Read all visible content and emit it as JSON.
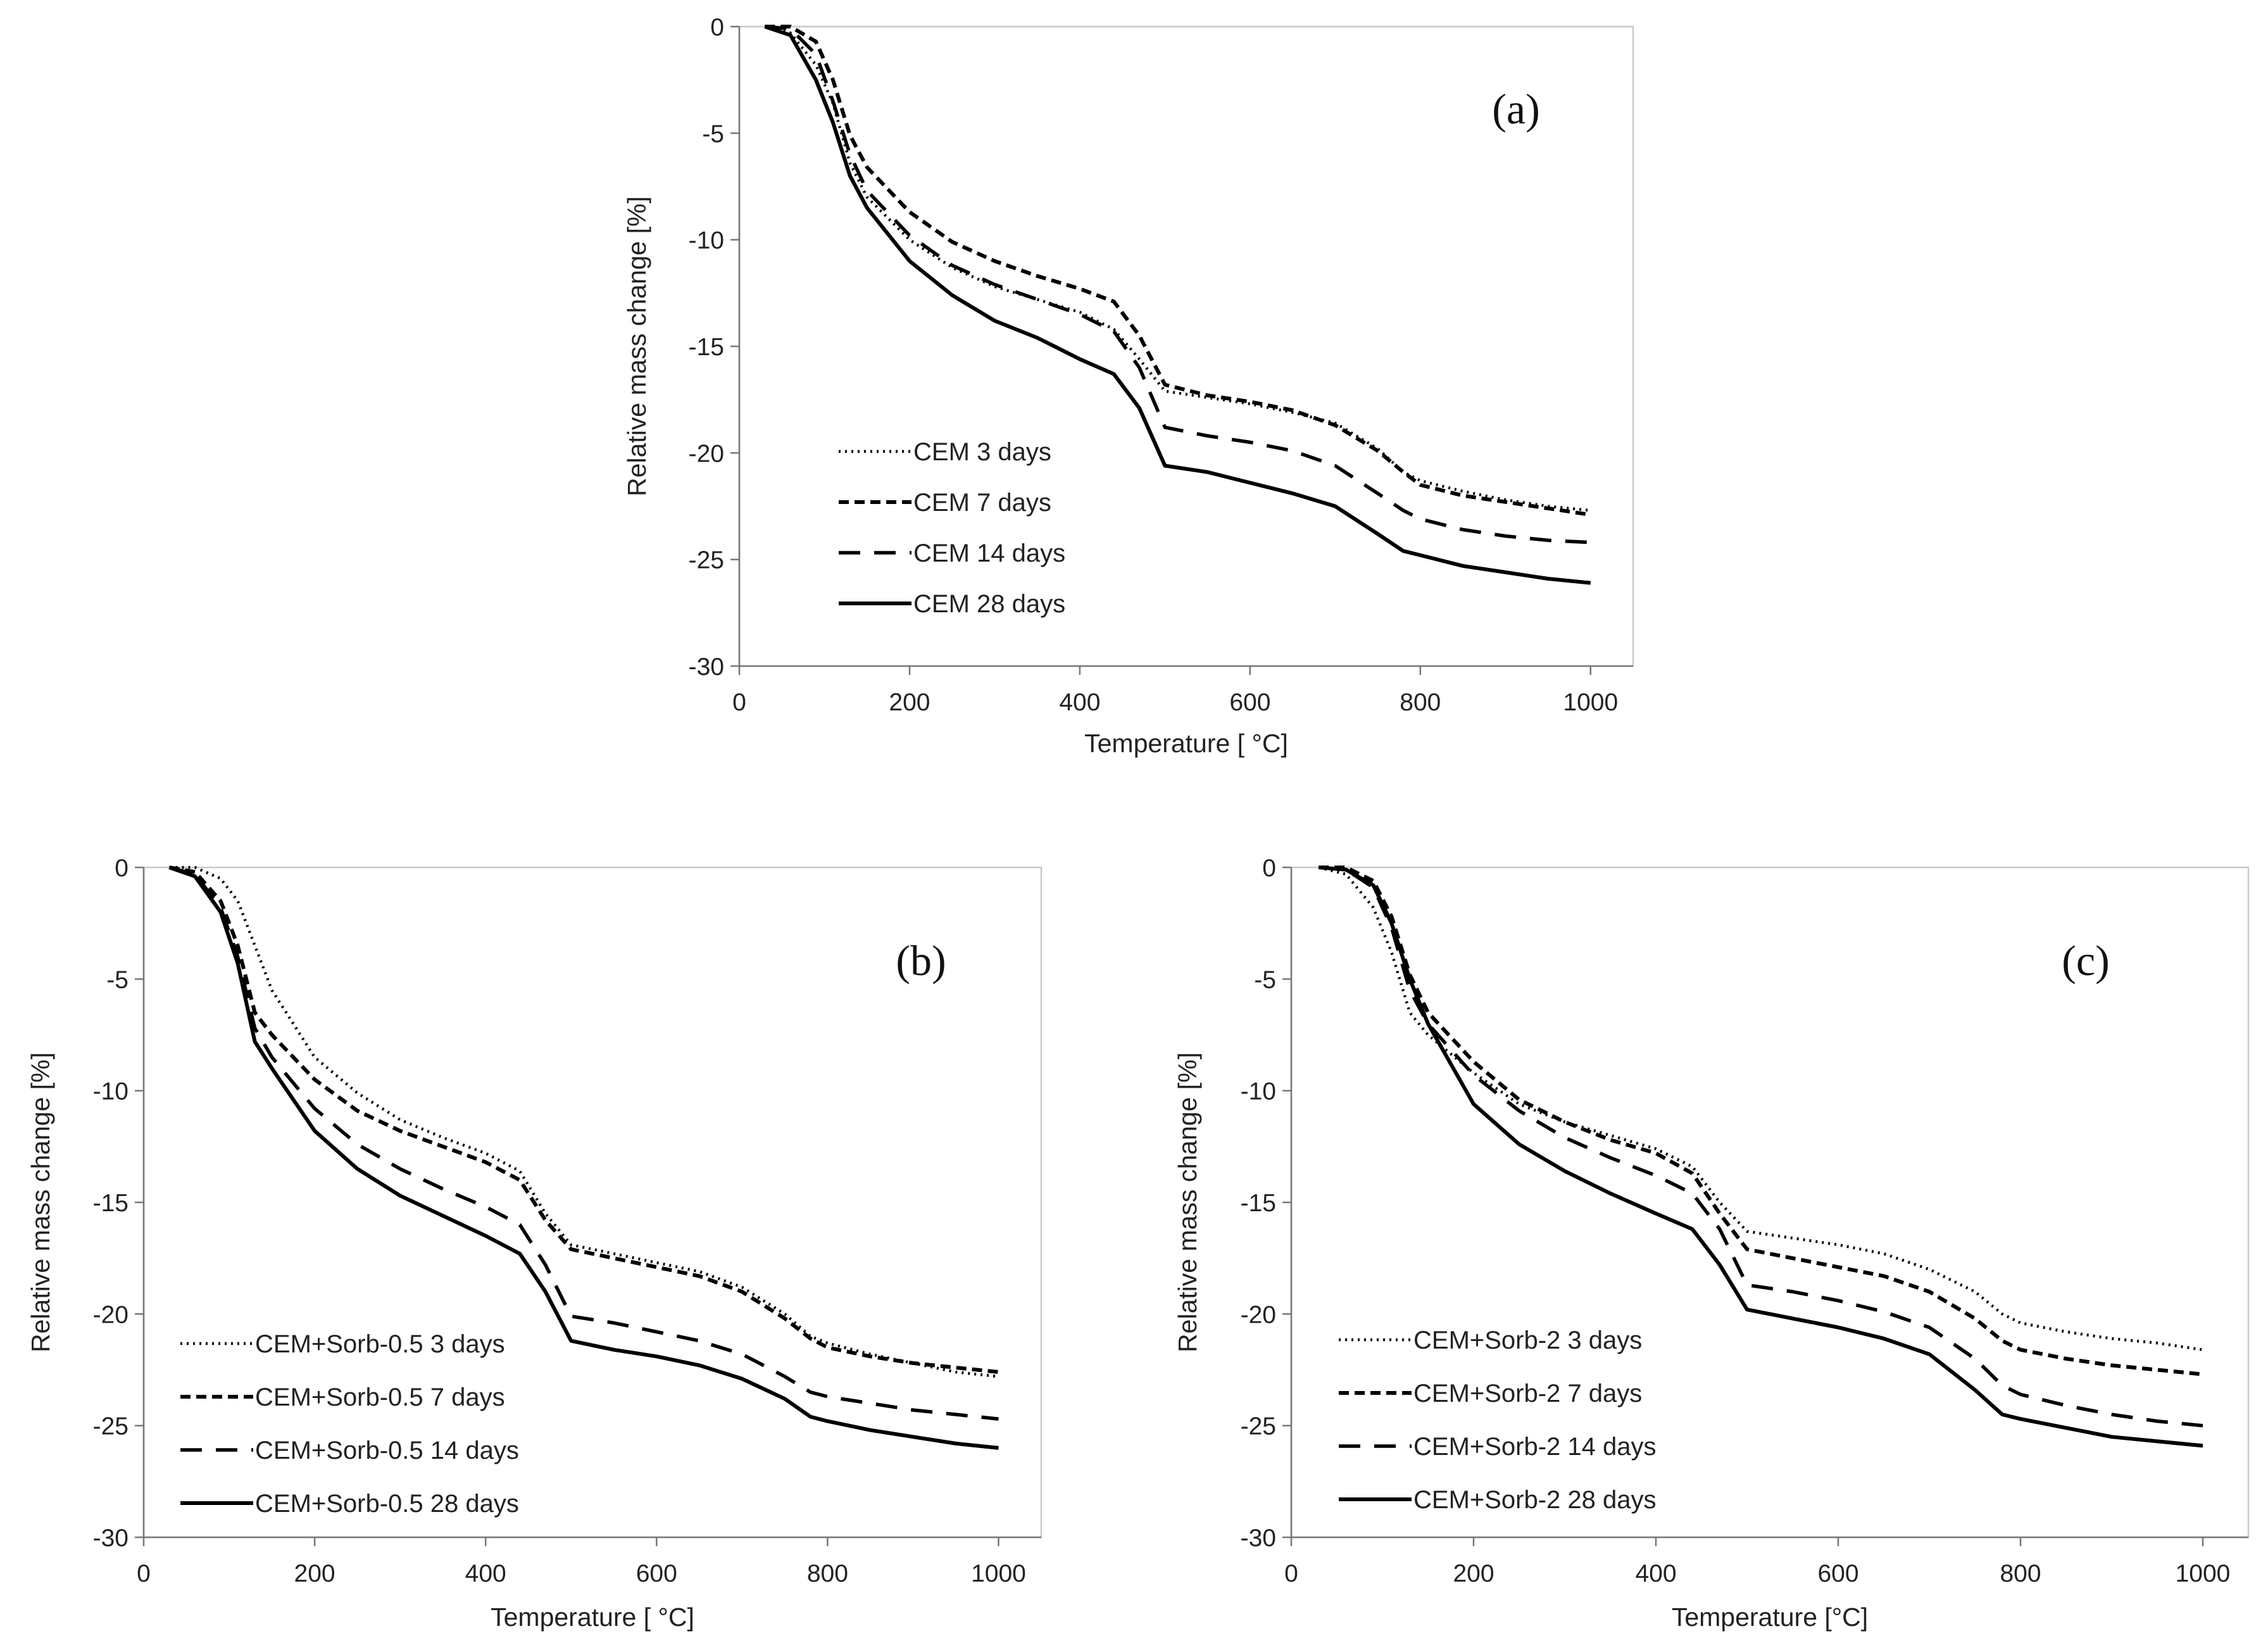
{
  "chart_data": [
    {
      "type": "line",
      "panel_label": "(a)",
      "xlabel": "Temperature [ °C]",
      "ylabel": "Relative mass change [%]",
      "xlim": [
        0,
        1050
      ],
      "ylim": [
        -30,
        0
      ],
      "x_ticks": [
        "0",
        "200",
        "400",
        "600",
        "800",
        "1000"
      ],
      "y_ticks": [
        "0",
        "-5",
        "-10",
        "-15",
        "-20",
        "-25",
        "-30"
      ],
      "grid": false,
      "legend_position": "bottom-left",
      "x": [
        30,
        60,
        90,
        110,
        130,
        150,
        200,
        250,
        300,
        350,
        400,
        440,
        470,
        500,
        550,
        600,
        650,
        700,
        750,
        780,
        800,
        850,
        900,
        950,
        1000
      ],
      "series": [
        {
          "name": "CEM 3 days",
          "style": "dotted",
          "values": [
            0,
            -0.3,
            -1.8,
            -3.6,
            -6.4,
            -8.0,
            -10.0,
            -11.3,
            -12.2,
            -12.8,
            -13.4,
            -14.2,
            -15.6,
            -17.1,
            -17.4,
            -17.7,
            -18.1,
            -18.6,
            -19.8,
            -20.9,
            -21.3,
            -21.8,
            -22.2,
            -22.5,
            -22.7
          ]
        },
        {
          "name": "CEM 7 days",
          "style": "short-dash",
          "values": [
            0,
            0,
            -0.7,
            -2.5,
            -5.1,
            -6.6,
            -8.7,
            -10.1,
            -11.0,
            -11.7,
            -12.3,
            -12.9,
            -14.5,
            -16.8,
            -17.3,
            -17.6,
            -18.0,
            -18.7,
            -19.9,
            -20.9,
            -21.5,
            -22.0,
            -22.3,
            -22.6,
            -22.9
          ]
        },
        {
          "name": "CEM 14 days",
          "style": "long-dash",
          "values": [
            0,
            -0.1,
            -1.3,
            -3.5,
            -6.0,
            -7.7,
            -9.8,
            -11.2,
            -12.1,
            -12.8,
            -13.5,
            -14.3,
            -16.0,
            -18.8,
            -19.2,
            -19.5,
            -19.9,
            -20.6,
            -21.9,
            -22.7,
            -23.1,
            -23.6,
            -23.9,
            -24.1,
            -24.2
          ]
        },
        {
          "name": "CEM 28 days",
          "style": "solid",
          "values": [
            0,
            -0.4,
            -2.5,
            -4.5,
            -7.0,
            -8.5,
            -11.0,
            -12.6,
            -13.8,
            -14.6,
            -15.6,
            -16.3,
            -17.9,
            -20.6,
            -20.9,
            -21.4,
            -21.9,
            -22.5,
            -23.8,
            -24.6,
            -24.8,
            -25.3,
            -25.6,
            -25.9,
            -26.1
          ]
        }
      ]
    },
    {
      "type": "line",
      "panel_label": "(b)",
      "xlabel": "Temperature [ °C]",
      "ylabel": "Relative mass change [%]",
      "xlim": [
        0,
        1050
      ],
      "ylim": [
        -30,
        0
      ],
      "x_ticks": [
        "0",
        "200",
        "400",
        "600",
        "800",
        "1000"
      ],
      "y_ticks": [
        "0",
        "-5",
        "-10",
        "-15",
        "-20",
        "-25",
        "-30"
      ],
      "grid": false,
      "legend_position": "bottom-left",
      "x": [
        30,
        60,
        90,
        110,
        130,
        150,
        200,
        250,
        300,
        350,
        400,
        440,
        470,
        500,
        550,
        600,
        650,
        700,
        750,
        780,
        800,
        850,
        900,
        950,
        1000
      ],
      "series": [
        {
          "name": "CEM+Sorb-0.5 3 days",
          "style": "dotted",
          "values": [
            0,
            0,
            -0.5,
            -1.5,
            -3.5,
            -5.5,
            -8.5,
            -10.1,
            -11.3,
            -12.1,
            -12.8,
            -13.6,
            -15.5,
            -16.9,
            -17.3,
            -17.7,
            -18.1,
            -18.8,
            -20.0,
            -21.0,
            -21.3,
            -21.8,
            -22.2,
            -22.6,
            -22.8
          ]
        },
        {
          "name": "CEM+Sorb-0.5 7 days",
          "style": "short-dash",
          "values": [
            0,
            -0.2,
            -1.5,
            -3.5,
            -6.5,
            -7.5,
            -9.5,
            -10.9,
            -11.8,
            -12.5,
            -13.2,
            -14.0,
            -15.8,
            -17.1,
            -17.5,
            -17.9,
            -18.3,
            -19.0,
            -20.2,
            -21.1,
            -21.5,
            -21.9,
            -22.2,
            -22.4,
            -22.6
          ]
        },
        {
          "name": "CEM+Sorb-0.5 14 days",
          "style": "long-dash",
          "values": [
            0,
            -0.3,
            -1.8,
            -4.0,
            -7.2,
            -8.5,
            -10.8,
            -12.4,
            -13.5,
            -14.4,
            -15.2,
            -16.0,
            -17.8,
            -20.1,
            -20.4,
            -20.8,
            -21.2,
            -21.8,
            -22.8,
            -23.5,
            -23.7,
            -24.0,
            -24.3,
            -24.5,
            -24.7
          ]
        },
        {
          "name": "CEM+Sorb-0.5 28 days",
          "style": "solid",
          "values": [
            0,
            -0.4,
            -2.0,
            -4.3,
            -7.8,
            -9.0,
            -11.8,
            -13.5,
            -14.7,
            -15.6,
            -16.5,
            -17.3,
            -19.0,
            -21.2,
            -21.6,
            -21.9,
            -22.3,
            -22.9,
            -23.8,
            -24.6,
            -24.8,
            -25.2,
            -25.5,
            -25.8,
            -26.0
          ]
        }
      ]
    },
    {
      "type": "line",
      "panel_label": "(c)",
      "xlabel": "Temperature [°C]",
      "ylabel": "Relative mass change [%]",
      "xlim": [
        0,
        1050
      ],
      "ylim": [
        -30,
        0
      ],
      "x_ticks": [
        "0",
        "200",
        "400",
        "600",
        "800",
        "1000"
      ],
      "y_ticks": [
        "0",
        "-5",
        "-10",
        "-15",
        "-20",
        "-25",
        "-30"
      ],
      "grid": false,
      "legend_position": "bottom-left",
      "x": [
        30,
        60,
        90,
        110,
        130,
        150,
        200,
        250,
        300,
        350,
        400,
        440,
        470,
        500,
        550,
        600,
        650,
        700,
        750,
        780,
        800,
        850,
        900,
        950,
        1000
      ],
      "series": [
        {
          "name": "CEM+Sorb-2 3 days",
          "style": "dotted",
          "values": [
            0,
            -0.3,
            -1.8,
            -3.8,
            -6.5,
            -7.5,
            -9.2,
            -10.6,
            -11.4,
            -12.0,
            -12.6,
            -13.4,
            -15.0,
            -16.3,
            -16.6,
            -16.9,
            -17.3,
            -18.0,
            -19.0,
            -20.0,
            -20.4,
            -20.8,
            -21.1,
            -21.3,
            -21.6
          ]
        },
        {
          "name": "CEM+Sorb-2 7 days",
          "style": "short-dash",
          "values": [
            0,
            0,
            -0.6,
            -2.2,
            -4.8,
            -6.5,
            -8.7,
            -10.4,
            -11.4,
            -12.2,
            -12.8,
            -13.7,
            -15.5,
            -17.1,
            -17.5,
            -17.9,
            -18.3,
            -19.0,
            -20.2,
            -21.2,
            -21.6,
            -22.0,
            -22.3,
            -22.5,
            -22.7
          ]
        },
        {
          "name": "CEM+Sorb-2 14 days",
          "style": "long-dash",
          "values": [
            0,
            -0.1,
            -0.9,
            -2.7,
            -5.5,
            -7.0,
            -9.3,
            -10.9,
            -12.1,
            -13.0,
            -13.8,
            -14.6,
            -16.2,
            -18.7,
            -19.0,
            -19.4,
            -19.9,
            -20.6,
            -22.0,
            -23.2,
            -23.6,
            -24.1,
            -24.5,
            -24.8,
            -25.0
          ]
        },
        {
          "name": "CEM+Sorb-2 28 days",
          "style": "solid",
          "values": [
            0,
            -0.1,
            -0.8,
            -2.5,
            -5.0,
            -7.0,
            -10.6,
            -12.4,
            -13.6,
            -14.6,
            -15.5,
            -16.2,
            -17.8,
            -19.8,
            -20.2,
            -20.6,
            -21.1,
            -21.8,
            -23.4,
            -24.5,
            -24.7,
            -25.1,
            -25.5,
            -25.7,
            -25.9
          ]
        }
      ]
    }
  ]
}
